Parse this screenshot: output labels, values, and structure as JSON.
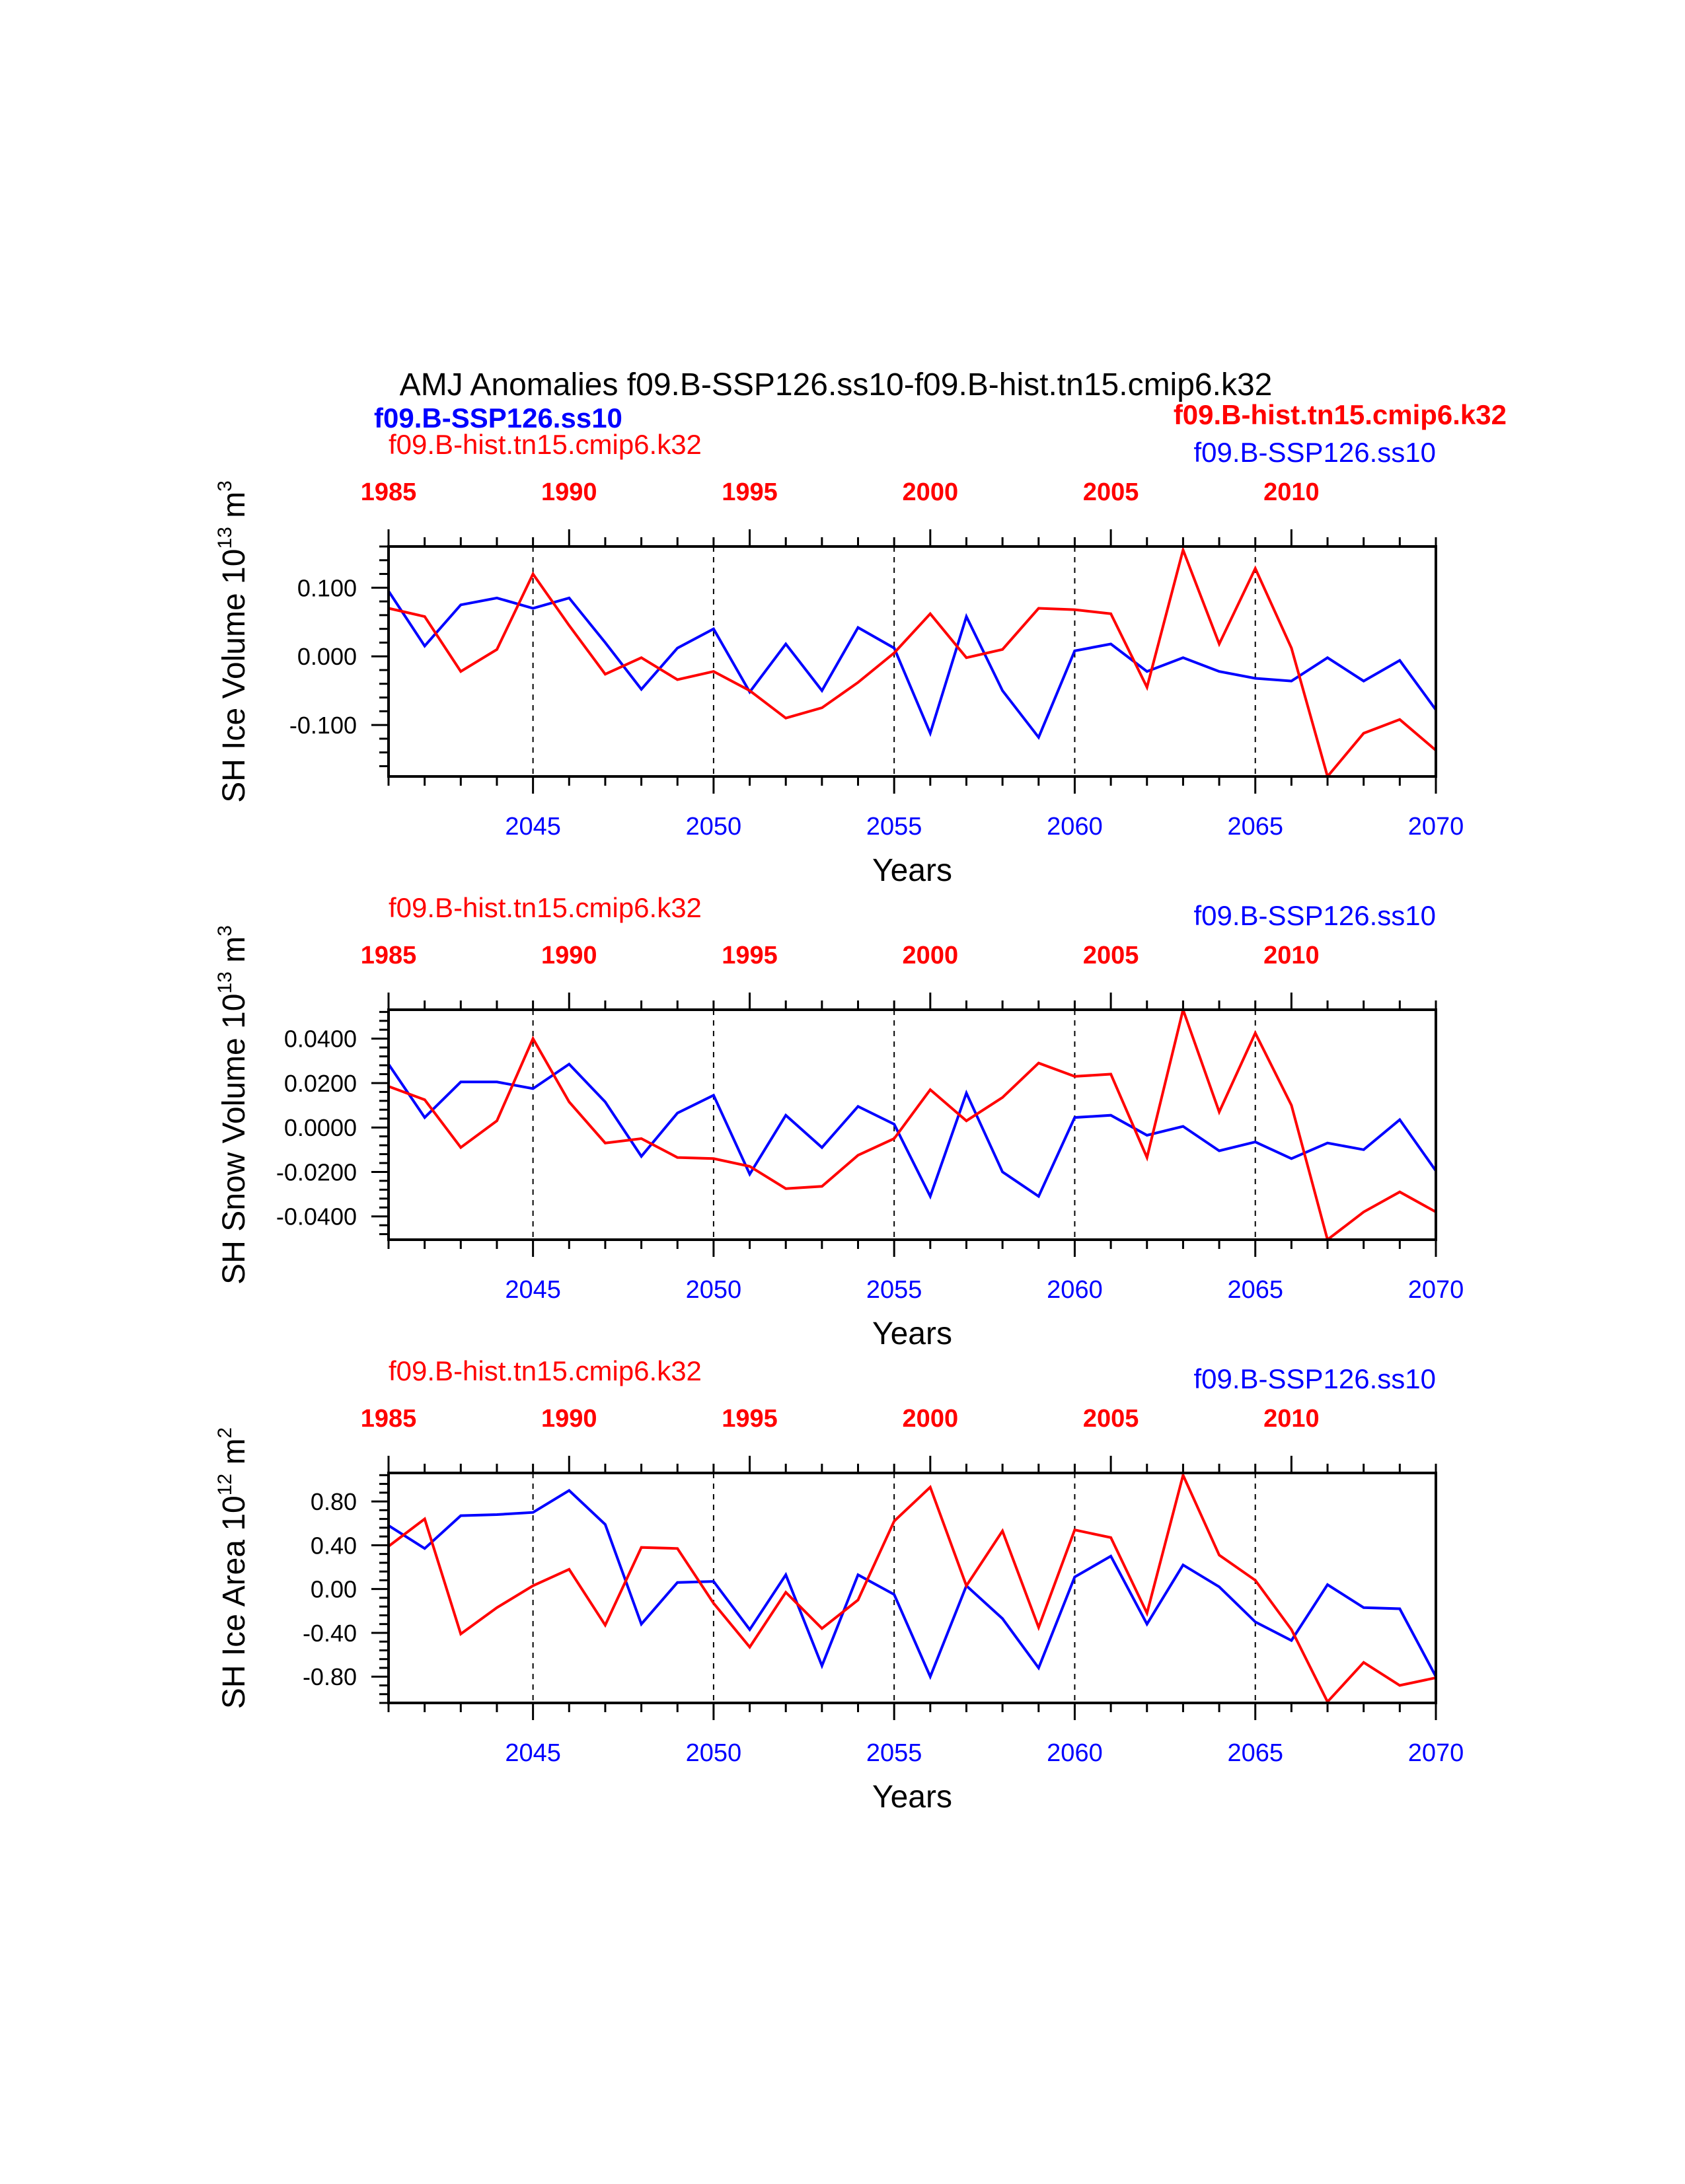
{
  "title": "AMJ Anomalies f09.B-SSP126.ss10-f09.B-hist.tn15.cmip6.k32",
  "legend": {
    "left_bold": "f09.B-SSP126.ss10",
    "right_bold": "f09.B-hist.tn15.cmip6.k32"
  },
  "colors": {
    "case1": "#0000ff",
    "case2": "#ff0000"
  },
  "chart_data": [
    {
      "type": "line",
      "ylabel_main": "SH Ice Volume 10",
      "ylabel_exp": "13",
      "ylabel_unit": " m",
      "ylabel_unit_exp": "3",
      "xlabel": "Years",
      "label_left": "f09.B-hist.tn15.cmip6.k32",
      "label_right": "f09.B-SSP126.ss10",
      "ylim": [
        -0.175,
        0.16
      ],
      "yticks": [
        -0.1,
        0.0,
        0.1
      ],
      "ytick_labels": [
        "-0.100",
        "0.000",
        "0.100"
      ],
      "x_bottom": {
        "lim": [
          2041,
          2070
        ],
        "ticks": [
          2045,
          2050,
          2055,
          2060,
          2065,
          2070
        ]
      },
      "x_top": {
        "lim": [
          1985,
          2014
        ],
        "ticks": [
          1985,
          1990,
          1995,
          2000,
          2005,
          2010
        ]
      },
      "series": [
        {
          "name": "f09.B-SSP126.ss10",
          "color": "#0000ff",
          "values": [
            0.095,
            0.015,
            0.075,
            0.085,
            0.07,
            0.085,
            0.02,
            -0.048,
            0.012,
            0.04,
            -0.052,
            0.018,
            -0.05,
            0.042,
            0.012,
            -0.112,
            0.058,
            -0.05,
            -0.118,
            0.008,
            0.018,
            -0.022,
            -0.002,
            -0.022,
            -0.032,
            -0.036,
            -0.002,
            -0.036,
            -0.006,
            -0.078
          ]
        },
        {
          "name": "f09.B-hist.tn15.cmip6.k32",
          "color": "#ff0000",
          "values": [
            0.07,
            0.058,
            -0.022,
            0.01,
            0.12,
            0.045,
            -0.026,
            -0.002,
            -0.034,
            -0.022,
            -0.05,
            -0.09,
            -0.075,
            -0.038,
            0.005,
            0.062,
            -0.002,
            0.01,
            0.07,
            0.068,
            0.062,
            -0.045,
            0.155,
            0.018,
            0.128,
            0.012,
            -0.175,
            -0.112,
            -0.092,
            -0.137
          ]
        }
      ]
    },
    {
      "type": "line",
      "ylabel_main": "SH Snow Volume 10",
      "ylabel_exp": "13",
      "ylabel_unit": " m",
      "ylabel_unit_exp": "3",
      "xlabel": "Years",
      "label_left": "f09.B-hist.tn15.cmip6.k32",
      "label_right": "f09.B-SSP126.ss10",
      "ylim": [
        -0.0505,
        0.053
      ],
      "yticks": [
        -0.04,
        -0.02,
        0.0,
        0.02,
        0.04
      ],
      "ytick_labels": [
        "-0.0400",
        "-0.0200",
        "0.0000",
        "0.0200",
        "0.0400"
      ],
      "x_bottom": {
        "lim": [
          2041,
          2070
        ],
        "ticks": [
          2045,
          2050,
          2055,
          2060,
          2065,
          2070
        ]
      },
      "x_top": {
        "lim": [
          1985,
          2014
        ],
        "ticks": [
          1985,
          1990,
          1995,
          2000,
          2005,
          2010
        ]
      },
      "series": [
        {
          "name": "f09.B-SSP126.ss10",
          "color": "#0000ff",
          "values": [
            0.0285,
            0.0045,
            0.0205,
            0.0205,
            0.0175,
            0.0285,
            0.0115,
            -0.013,
            0.0065,
            0.0145,
            -0.021,
            0.0055,
            -0.009,
            0.0095,
            0.0015,
            -0.031,
            0.0155,
            -0.02,
            -0.031,
            0.0045,
            0.0055,
            -0.0035,
            0.0005,
            -0.0105,
            -0.0065,
            -0.014,
            -0.007,
            -0.01,
            0.0035,
            -0.0195
          ]
        },
        {
          "name": "f09.B-hist.tn15.cmip6.k32",
          "color": "#ff0000",
          "values": [
            0.0185,
            0.0125,
            -0.009,
            0.003,
            0.04,
            0.0115,
            -0.007,
            -0.005,
            -0.0135,
            -0.014,
            -0.0175,
            -0.0275,
            -0.0265,
            -0.0125,
            -0.005,
            0.017,
            0.003,
            0.0135,
            0.029,
            0.023,
            0.024,
            -0.0135,
            0.053,
            0.007,
            0.0425,
            0.01,
            -0.0505,
            -0.038,
            -0.029,
            -0.038
          ]
        }
      ]
    },
    {
      "type": "line",
      "ylabel_main": "SH Ice Area 10",
      "ylabel_exp": "12",
      "ylabel_unit": " m",
      "ylabel_unit_exp": "2",
      "xlabel": "Years",
      "label_left": "f09.B-hist.tn15.cmip6.k32",
      "label_right": "f09.B-SSP126.ss10",
      "ylim": [
        -1.04,
        1.06
      ],
      "yticks": [
        -0.8,
        -0.4,
        0.0,
        0.4,
        0.8
      ],
      "ytick_labels": [
        "-0.80",
        "-0.40",
        "0.00",
        "0.40",
        "0.80"
      ],
      "x_bottom": {
        "lim": [
          2041,
          2070
        ],
        "ticks": [
          2045,
          2050,
          2055,
          2060,
          2065,
          2070
        ]
      },
      "x_top": {
        "lim": [
          1985,
          2014
        ],
        "ticks": [
          1985,
          1990,
          1995,
          2000,
          2005,
          2010
        ]
      },
      "series": [
        {
          "name": "f09.B-SSP126.ss10",
          "color": "#0000ff",
          "values": [
            0.58,
            0.37,
            0.67,
            0.68,
            0.7,
            0.9,
            0.59,
            -0.32,
            0.06,
            0.07,
            -0.37,
            0.13,
            -0.7,
            0.13,
            -0.05,
            -0.8,
            0.03,
            -0.27,
            -0.72,
            0.11,
            0.3,
            -0.32,
            0.22,
            0.02,
            -0.3,
            -0.47,
            0.04,
            -0.17,
            -0.18,
            -0.8
          ]
        },
        {
          "name": "f09.B-hist.tn15.cmip6.k32",
          "color": "#ff0000",
          "values": [
            0.39,
            0.64,
            -0.41,
            -0.17,
            0.03,
            0.18,
            -0.33,
            0.38,
            0.37,
            -0.13,
            -0.53,
            -0.03,
            -0.36,
            -0.1,
            0.62,
            0.93,
            0.03,
            0.53,
            -0.35,
            0.54,
            0.47,
            -0.22,
            1.04,
            0.31,
            0.08,
            -0.37,
            -1.03,
            -0.67,
            -0.88,
            -0.81
          ]
        }
      ]
    }
  ]
}
